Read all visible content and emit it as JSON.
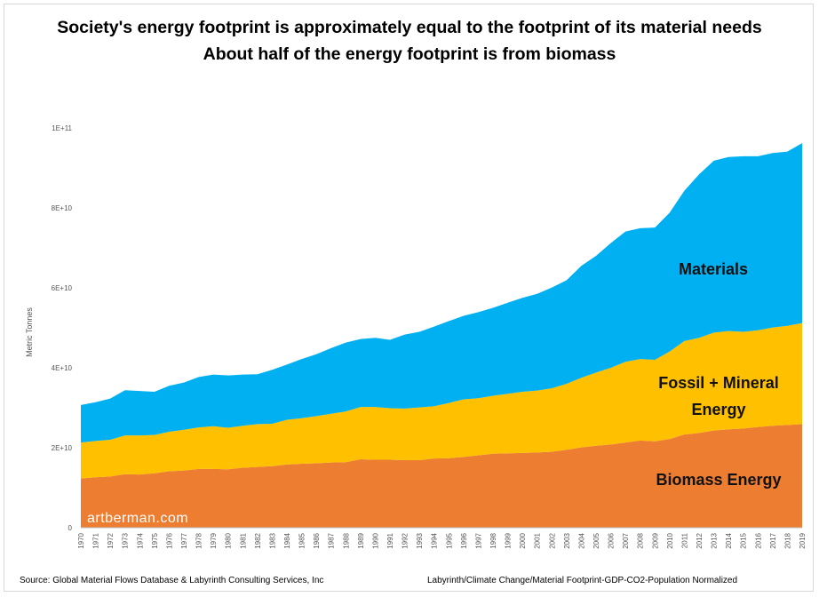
{
  "title": "Society's energy footprint is approximately equal to the footprint of its material needs",
  "subtitle": "About half of the energy footprint is from biomass",
  "watermark": "artberman.com",
  "source_left": "Source:  Global Material Flows Database & Labyrinth Consulting Services, Inc",
  "source_right": "Labyrinth/Climate Change/Material Footprint-GDP-CO2-Population Normalized",
  "colors": {
    "biomass": "#ED7D31",
    "fossil": "#FFC000",
    "materials": "#00B0F0",
    "watermark": "#ffffff"
  },
  "chart_data": {
    "type": "area",
    "stacked": true,
    "ylabel": "Metric Tonnes",
    "xlabel": "",
    "ylim": [
      0,
      100000000000
    ],
    "yticks": [
      {
        "value": 0,
        "label": "0"
      },
      {
        "value": 20000000000,
        "label": "2E+10"
      },
      {
        "value": 40000000000,
        "label": "4E+10"
      },
      {
        "value": 60000000000,
        "label": "6E+10"
      },
      {
        "value": 80000000000,
        "label": "8E+10"
      },
      {
        "value": 100000000000,
        "label": "1E+11"
      }
    ],
    "grid": false,
    "legend": "none",
    "x": [
      "1970",
      "1971",
      "1972",
      "1973",
      "1974",
      "1975",
      "1976",
      "1977",
      "1978",
      "1979",
      "1980",
      "1981",
      "1982",
      "1983",
      "1984",
      "1985",
      "1986",
      "1987",
      "1988",
      "1989",
      "1990",
      "1991",
      "1992",
      "1993",
      "1994",
      "1995",
      "1996",
      "1997",
      "1998",
      "1999",
      "2000",
      "2001",
      "2002",
      "2003",
      "2004",
      "2005",
      "2006",
      "2007",
      "2008",
      "2009",
      "2010",
      "2011",
      "2012",
      "2013",
      "2014",
      "2015",
      "2016",
      "2017",
      "2018",
      "2019"
    ],
    "series": [
      {
        "name": "Biomass Energy",
        "label_lines": [
          "Biomass Energy"
        ],
        "values": [
          12.3,
          12.6,
          12.8,
          13.4,
          13.3,
          13.6,
          14.1,
          14.3,
          14.7,
          14.7,
          14.6,
          15.0,
          15.2,
          15.4,
          15.8,
          16.0,
          16.1,
          16.3,
          16.4,
          17.1,
          17.0,
          17.0,
          16.9,
          16.9,
          17.3,
          17.4,
          17.7,
          18.1,
          18.5,
          18.6,
          18.7,
          18.8,
          19.0,
          19.5,
          20.1,
          20.5,
          20.8,
          21.3,
          21.8,
          21.6,
          22.2,
          23.3,
          23.7,
          24.3,
          24.6,
          24.8,
          25.2,
          25.5,
          25.7,
          25.9
        ]
      },
      {
        "name": "Fossil + Mineral Energy",
        "label_lines": [
          "Fossil + Mineral",
          "Energy"
        ],
        "values": [
          9.0,
          9.1,
          9.2,
          9.7,
          9.8,
          9.6,
          9.9,
          10.2,
          10.4,
          10.7,
          10.4,
          10.5,
          10.7,
          10.6,
          11.2,
          11.4,
          11.8,
          12.2,
          12.7,
          13.1,
          13.2,
          12.9,
          12.9,
          13.2,
          13.1,
          13.8,
          14.4,
          14.3,
          14.5,
          14.9,
          15.3,
          15.5,
          15.9,
          16.5,
          17.4,
          18.3,
          19.2,
          20.2,
          20.4,
          20.4,
          21.9,
          23.4,
          23.8,
          24.5,
          24.6,
          24.2,
          24.2,
          24.6,
          24.8,
          25.3
        ]
      },
      {
        "name": "Materials",
        "label_lines": [
          "Materials"
        ],
        "values": [
          9.4,
          9.7,
          10.3,
          11.3,
          11.1,
          10.8,
          11.5,
          11.8,
          12.6,
          12.9,
          13.1,
          12.8,
          12.5,
          13.5,
          13.8,
          14.8,
          15.5,
          16.4,
          17.2,
          17.0,
          17.3,
          17.1,
          18.5,
          18.9,
          19.9,
          20.5,
          20.9,
          21.5,
          22.0,
          22.8,
          23.5,
          24.2,
          25.2,
          25.9,
          28.0,
          29.2,
          31.2,
          32.6,
          32.7,
          33.1,
          34.7,
          37.6,
          40.9,
          43.0,
          43.5,
          43.9,
          43.5,
          43.6,
          43.6,
          45.0
        ]
      }
    ],
    "value_unit": "billion metric tonnes (1E+9)"
  }
}
